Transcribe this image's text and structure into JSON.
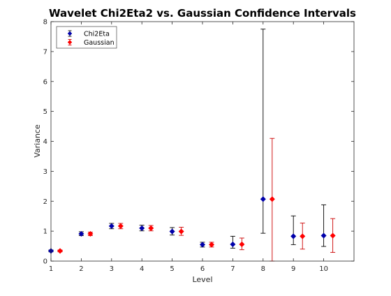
{
  "chart_data": {
    "type": "scatter",
    "title": "Wavelet Chi2Eta2 vs. Gaussian Confidence Intervals",
    "xlabel": "Level",
    "ylabel": "Variance",
    "xlim": [
      1,
      11
    ],
    "ylim": [
      0,
      8
    ],
    "xticks": [
      "1",
      "2",
      "3",
      "4",
      "5",
      "6",
      "7",
      "8",
      "9",
      "10"
    ],
    "yticks": [
      "0",
      "1",
      "2",
      "3",
      "4",
      "5",
      "6",
      "7",
      "8"
    ],
    "grid": false,
    "legend": "top-left",
    "series": [
      {
        "name": "Chi2Eta",
        "marker_color": "#0000aa",
        "bar_color": "#000000",
        "x": [
          1,
          2,
          3,
          4,
          5,
          6,
          7,
          8,
          9,
          10
        ],
        "y": [
          0.34,
          0.91,
          1.17,
          1.1,
          0.99,
          0.55,
          0.56,
          2.07,
          0.83,
          0.85
        ],
        "lower": [
          0.31,
          0.85,
          1.08,
          1.01,
          0.87,
          0.47,
          0.43,
          0.93,
          0.55,
          0.49
        ],
        "upper": [
          0.37,
          0.98,
          1.26,
          1.2,
          1.12,
          0.63,
          0.83,
          7.75,
          1.51,
          1.88
        ]
      },
      {
        "name": "Gaussian",
        "marker_color": "#ff0000",
        "bar_color": "#cc0000",
        "x": [
          1.3,
          2.3,
          3.3,
          4.3,
          5.3,
          6.3,
          7.3,
          8.3,
          9.3,
          10.3
        ],
        "y": [
          0.34,
          0.91,
          1.17,
          1.1,
          0.99,
          0.55,
          0.56,
          2.07,
          0.83,
          0.85
        ],
        "lower": [
          0.31,
          0.85,
          1.08,
          1.01,
          0.86,
          0.47,
          0.38,
          0.0,
          0.4,
          0.29
        ],
        "upper": [
          0.37,
          0.97,
          1.26,
          1.19,
          1.13,
          0.63,
          0.77,
          4.1,
          1.27,
          1.42
        ]
      }
    ]
  }
}
